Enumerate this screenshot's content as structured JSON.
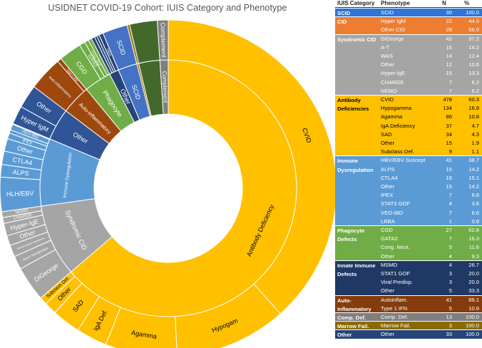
{
  "chart_data": {
    "type": "sunburst",
    "title": "USIDNET COVID-19 Cohort:  IUIS Category and Phenotype",
    "categories": [
      {
        "name": "SCID",
        "ring_label": "SCID",
        "color": "#4472c4",
        "legend_color": "#2e75d6",
        "legend_text": "#ffffff",
        "phenotypes": [
          {
            "name": "SCID",
            "ring_label": "SCID",
            "n": 30,
            "pct": "100.0"
          }
        ]
      },
      {
        "name": "CID",
        "ring_label": "Other",
        "color": "#2f5597",
        "legend_color": "#ed7d31",
        "legend_text": "#ffffff",
        "phenotypes": [
          {
            "name": "Hyper IgM",
            "ring_label": "Hyper IgM",
            "n": 22,
            "pct": "44.0"
          },
          {
            "name": "Other CID",
            "ring_label": "Other",
            "n": 28,
            "pct": "56.0"
          }
        ]
      },
      {
        "name": "Syndromic CID",
        "ring_label": "Syndromic CID",
        "color": "#a5a5a5",
        "legend_color": "#a5a5a5",
        "legend_text": "#ffffff",
        "phenotypes": [
          {
            "name": "DiGeorge",
            "ring_label": "DiGeorge",
            "n": 42,
            "pct": "37.2"
          },
          {
            "name": "A-T",
            "ring_label": "Ataxia-Telangiectasia",
            "n": 16,
            "pct": "14.2"
          },
          {
            "name": "WAS",
            "ring_label": "Wiskott-Aldrich Syndrome",
            "n": 14,
            "pct": "12.4"
          },
          {
            "name": "Other",
            "ring_label": "Other",
            "n": 12,
            "pct": "10.6"
          },
          {
            "name": "Hyper-IgE",
            "ring_label": "Hyper-IgE",
            "n": 15,
            "pct": "13.3"
          },
          {
            "name": "CHARGE",
            "ring_label": "CHARGE",
            "n": 7,
            "pct": "6.2"
          },
          {
            "name": "NEMO",
            "ring_label": "NEMO",
            "n": 7,
            "pct": "6.2"
          }
        ]
      },
      {
        "name": "Antibody Deficiencies",
        "ring_label": "Antibody Deficiency",
        "color": "#ffc000",
        "legend_color": "#ffc000",
        "legend_text": "#000000",
        "phenotypes": [
          {
            "name": "CVID",
            "ring_label": "CVID",
            "n": 478,
            "pct": "60.3"
          },
          {
            "name": "Hypogamma",
            "ring_label": "Hypogam",
            "n": 134,
            "pct": "16.9"
          },
          {
            "name": "Agamma",
            "ring_label": "Agamma",
            "n": 86,
            "pct": "10.8"
          },
          {
            "name": "IgA Deficiency",
            "ring_label": "IgA Def.",
            "n": 37,
            "pct": "4.7"
          },
          {
            "name": "SAD",
            "ring_label": "SAD",
            "n": 34,
            "pct": "4.3"
          },
          {
            "name": "Other",
            "ring_label": "Other",
            "n": 15,
            "pct": "1.9"
          },
          {
            "name": "Subclass Def.",
            "ring_label": "Subclass Def.",
            "n": 9,
            "pct": "1.1"
          }
        ]
      },
      {
        "name": "Immune Dysregulation",
        "ring_label": "Immune Dysregulation",
        "color": "#5b9bd5",
        "legend_color": "#5b9bd5",
        "legend_text": "#ffffff",
        "phenotypes": [
          {
            "name": "HBV/EBV Suscept",
            "ring_label": "HLH/EBV",
            "n": 41,
            "pct": "38.7"
          },
          {
            "name": "ALPS",
            "ring_label": "ALPS",
            "n": 15,
            "pct": "14.2"
          },
          {
            "name": "CTLA4",
            "ring_label": "CTLA4",
            "n": 16,
            "pct": "15.1"
          },
          {
            "name": "Other",
            "ring_label": "Other",
            "n": 15,
            "pct": "14.2"
          },
          {
            "name": "IPEX",
            "ring_label": "IPEX",
            "n": 7,
            "pct": "6.6"
          },
          {
            "name": "STAT3 GOF",
            "ring_label": "STAT3 GOF",
            "n": 4,
            "pct": "3.8"
          },
          {
            "name": "VEO-IBD",
            "ring_label": "VEO-IBD",
            "n": 7,
            "pct": "6.6"
          },
          {
            "name": "LRBA",
            "ring_label": "LRBA",
            "n": 1,
            "pct": "0.9"
          }
        ]
      },
      {
        "name": "Phagocyte Defects",
        "ring_label": "Phagocyte",
        "color": "#70ad47",
        "legend_color": "#70ad47",
        "legend_text": "#ffffff",
        "phenotypes": [
          {
            "name": "CGD",
            "ring_label": "CGD",
            "n": 27,
            "pct": "62.8"
          },
          {
            "name": "GATA2",
            "ring_label": "GATA2",
            "n": 7,
            "pct": "16.3"
          },
          {
            "name": "Cong. Neut.",
            "ring_label": "Cong. Neut.",
            "n": 5,
            "pct": "11.6"
          },
          {
            "name": "Other",
            "ring_label": "Other",
            "n": 4,
            "pct": "9.3"
          }
        ]
      },
      {
        "name": "Innate Immune Defects",
        "ring_label": "Other",
        "color": "#264478",
        "legend_color": "#1f3864",
        "legend_text": "#ffffff",
        "phenotypes": [
          {
            "name": "MSMD",
            "ring_label": "MSMD",
            "n": 4,
            "pct": "26.7"
          },
          {
            "name": "STAT1 GOF",
            "ring_label": "STAT1",
            "n": 3,
            "pct": "20.0"
          },
          {
            "name": "Viral Predisp.",
            "ring_label": "Viral",
            "n": 3,
            "pct": "20.0"
          },
          {
            "name": "Other",
            "ring_label": "Other",
            "n": 5,
            "pct": "33.3"
          }
        ]
      },
      {
        "name": "Auto-Inflammatory",
        "ring_label": "Auto-inflammatory",
        "color": "#9e480e",
        "legend_color": "#843c0c",
        "legend_text": "#ffffff",
        "phenotypes": [
          {
            "name": "Autoinflam.",
            "ring_label": "Auto-inflammatory",
            "n": 41,
            "pct": "89.1"
          },
          {
            "name": "Type 1 IFN",
            "ring_label": "Type 1 IFN",
            "n": 5,
            "pct": "10.9"
          }
        ]
      },
      {
        "name": "Comp. Def.",
        "ring_label": "Complement",
        "color": "#7f7f7f",
        "legend_color": "#7f7f7f",
        "legend_text": "#ffffff",
        "phenotypes": [
          {
            "name": "Comp. Def.",
            "ring_label": "Complement",
            "n": 13,
            "pct": "100.0"
          }
        ]
      },
      {
        "name": "Marrow Fail.",
        "ring_label": "",
        "color": "#997300",
        "legend_color": "#8a6a00",
        "legend_text": "#ffffff",
        "phenotypes": [
          {
            "name": "Marrow Fail.",
            "ring_label": "",
            "n": 3,
            "pct": "100.0"
          }
        ]
      },
      {
        "name": "Other",
        "ring_label": "",
        "color": "#43682b",
        "legend_color": "#264478",
        "legend_text": "#ffffff",
        "phenotypes": [
          {
            "name": "Other",
            "ring_label": "",
            "n": 33,
            "pct": "100.0"
          }
        ]
      }
    ],
    "legend_headers": {
      "category": "IUIS Category",
      "phenotype": "Phenotype",
      "n": "N",
      "pct": "%"
    },
    "legend_sections": [
      {
        "label": "SCID",
        "rows": [
          [
            "SCID",
            "30",
            "100.0"
          ]
        ]
      },
      {
        "label": "CID",
        "rows": [
          [
            "Hyper IgM",
            "22",
            "44.0"
          ],
          [
            "Other CID",
            "28",
            "56.0"
          ]
        ]
      },
      {
        "label": "Syndromic CID",
        "rows": [
          [
            "DiGeorge",
            "42",
            "37.2"
          ],
          [
            "A-T",
            "16",
            "14.2"
          ],
          [
            "WAS",
            "14",
            "12.4"
          ],
          [
            "Other",
            "12",
            "10.6"
          ],
          [
            "Hyper-IgE",
            "15",
            "13.3"
          ],
          [
            "CHARGE",
            "7",
            "6.2"
          ],
          [
            "NEMO",
            "7",
            "6.2"
          ]
        ]
      },
      {
        "label": "Antibody Deficiencies",
        "rows": [
          [
            "CVID",
            "478",
            "60.3"
          ],
          [
            "Hypogamma",
            "134",
            "16.9"
          ],
          [
            "Agamma",
            "86",
            "10.8"
          ],
          [
            "IgA Deficiency",
            "37",
            "4.7"
          ],
          [
            "SAD",
            "34",
            "4.3"
          ],
          [
            "Other",
            "15",
            "1.9"
          ],
          [
            "Subclass Def.",
            "9",
            "1.1"
          ]
        ]
      },
      {
        "label": "Immune Dysregulation",
        "rows": [
          [
            "HBV/EBV Suscept",
            "41",
            "38.7"
          ],
          [
            "ALPS",
            "15",
            "14.2"
          ],
          [
            "CTLA4",
            "16",
            "15.1"
          ],
          [
            "Other",
            "15",
            "14.2"
          ],
          [
            "IPEX",
            "7",
            "6.6"
          ],
          [
            "STAT3 GOF",
            "4",
            "3.8"
          ],
          [
            "VEO-IBD",
            "7",
            "6.6"
          ],
          [
            "LRBA",
            "1",
            "0.9"
          ]
        ]
      },
      {
        "label": "Phagocyte Defects",
        "rows": [
          [
            "CGD",
            "27",
            "62.8"
          ],
          [
            "GATA2",
            "7",
            "16.3"
          ],
          [
            "Cong. Neut.",
            "5",
            "11.6"
          ],
          [
            "Other",
            "4",
            "9.3"
          ]
        ]
      },
      {
        "label": "Innate Immune Defects",
        "rows": [
          [
            "MSMD",
            "4",
            "26.7"
          ],
          [
            "STAT1 GOF",
            "3",
            "20.0"
          ],
          [
            "Viral Predisp.",
            "3",
            "20.0"
          ],
          [
            "Other",
            "5",
            "33.3"
          ]
        ]
      },
      {
        "label": "Auto-Inflammatory",
        "rows": [
          [
            "Autoinflam.",
            "41",
            "89.1"
          ],
          [
            "Type 1 IFN",
            "5",
            "10.9"
          ]
        ]
      },
      {
        "label": "Comp. Def.",
        "rows": [
          [
            "Comp. Def.",
            "13",
            "100.0"
          ]
        ]
      },
      {
        "label": "Marrow Fail.",
        "rows": [
          [
            "Marrow Fail.",
            "3",
            "100.0"
          ]
        ]
      },
      {
        "label": "Other",
        "rows": [
          [
            "Other",
            "33",
            "100.0"
          ]
        ]
      }
    ]
  }
}
